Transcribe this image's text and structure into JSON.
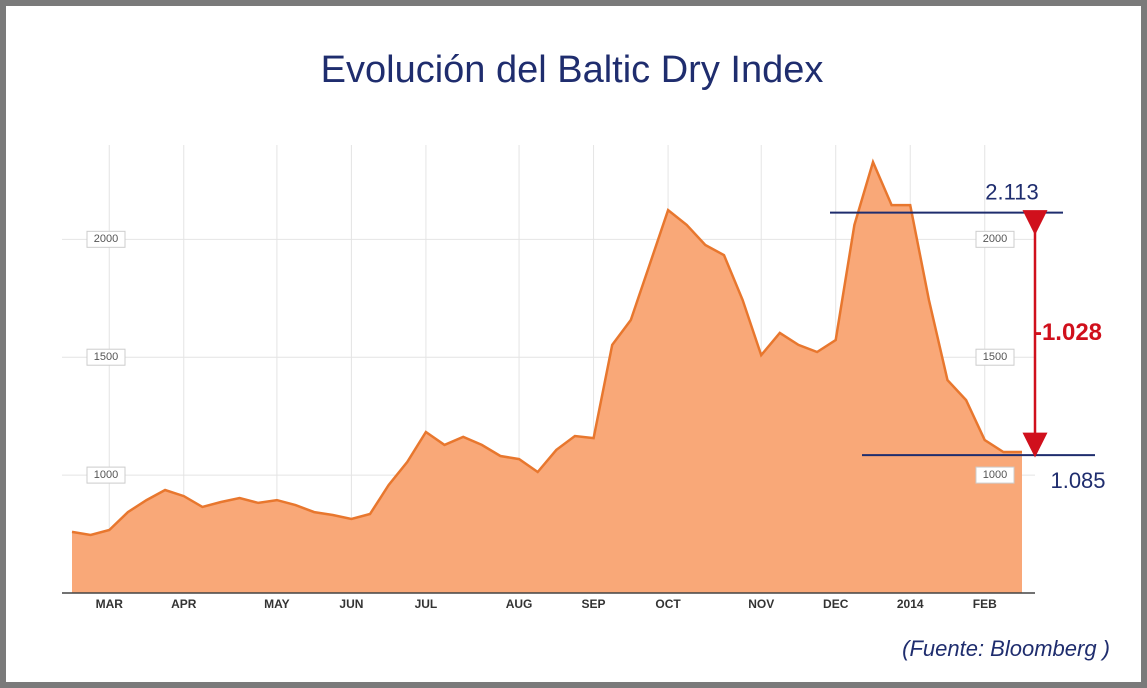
{
  "chart_data": {
    "type": "area",
    "title": "Evolución del Baltic Dry Index",
    "categories": [
      null,
      null,
      "MAR",
      null,
      null,
      null,
      "APR",
      null,
      null,
      null,
      null,
      "MAY",
      null,
      null,
      null,
      "JUN",
      null,
      null,
      null,
      "JUL",
      null,
      null,
      null,
      null,
      "AUG",
      null,
      null,
      null,
      "SEP",
      null,
      null,
      null,
      "OCT",
      null,
      null,
      null,
      null,
      "NOV",
      null,
      null,
      null,
      "DEC",
      null,
      null,
      null,
      "2014",
      null,
      null,
      null,
      "FEB",
      null,
      null
    ],
    "series": [
      {
        "name": "Baltic Dry Index",
        "color": "#e8772e",
        "fill": "#f9a878",
        "values": [
          759,
          746,
          767,
          843,
          894,
          937,
          911,
          865,
          886,
          903,
          882,
          894,
          873,
          843,
          831,
          814,
          835,
          958,
          1056,
          1183,
          1128,
          1162,
          1128,
          1081,
          1068,
          1013,
          1107,
          1166,
          1157,
          1552,
          1658,
          1891,
          2124,
          2061,
          1976,
          1933,
          1743,
          1509,
          1603,
          1552,
          1522,
          1573,
          2061,
          2328,
          2145,
          2145,
          1743,
          1403,
          1318,
          1149,
          1098,
          1098
        ]
      }
    ],
    "ylim": [
      500,
      2400
    ],
    "yticks": [
      1000,
      1500,
      2000
    ],
    "grid": true,
    "annotations": [
      {
        "label": "2.113",
        "value": 2113
      },
      {
        "label": "1.085",
        "value": 1085
      }
    ],
    "difference": {
      "label": "-1.028",
      "value": -1028
    },
    "source": "(Fuente: Bloomberg )"
  }
}
